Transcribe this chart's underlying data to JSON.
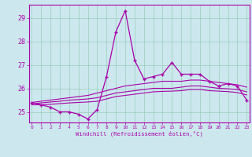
{
  "xlabel": "Windchill (Refroidissement éolien,°C)",
  "bg_color": "#cce8ee",
  "grid_color": "#99ccbb",
  "line_color": "#aa00aa",
  "hours": [
    0,
    1,
    2,
    3,
    4,
    5,
    6,
    7,
    8,
    9,
    10,
    11,
    12,
    13,
    14,
    15,
    16,
    17,
    18,
    19,
    20,
    21,
    22,
    23
  ],
  "temp": [
    25.4,
    25.3,
    25.2,
    25.0,
    25.0,
    24.9,
    24.7,
    25.1,
    26.5,
    28.4,
    29.3,
    27.2,
    26.4,
    26.5,
    26.6,
    27.1,
    26.6,
    26.6,
    26.6,
    26.3,
    26.1,
    26.2,
    26.1,
    25.5
  ],
  "upper_env": [
    25.4,
    25.45,
    25.5,
    25.55,
    25.6,
    25.65,
    25.7,
    25.8,
    25.9,
    26.0,
    26.1,
    26.15,
    26.2,
    26.25,
    26.3,
    26.3,
    26.3,
    26.35,
    26.35,
    26.3,
    26.25,
    26.2,
    26.15,
    26.05
  ],
  "mid_env": [
    25.35,
    25.38,
    25.42,
    25.45,
    25.5,
    25.52,
    25.55,
    25.6,
    25.7,
    25.8,
    25.85,
    25.9,
    25.95,
    26.0,
    26.0,
    26.0,
    26.05,
    26.1,
    26.1,
    26.05,
    26.0,
    25.98,
    25.95,
    25.85
  ],
  "lower_env": [
    25.3,
    25.3,
    25.32,
    25.35,
    25.38,
    25.4,
    25.42,
    25.45,
    25.55,
    25.65,
    25.7,
    25.75,
    25.8,
    25.85,
    25.87,
    25.88,
    25.9,
    25.95,
    25.95,
    25.9,
    25.88,
    25.86,
    25.82,
    25.72
  ],
  "ylim": [
    24.55,
    29.55
  ],
  "yticks": [
    25,
    26,
    27,
    28,
    29
  ],
  "xlim": [
    -0.3,
    23.3
  ]
}
